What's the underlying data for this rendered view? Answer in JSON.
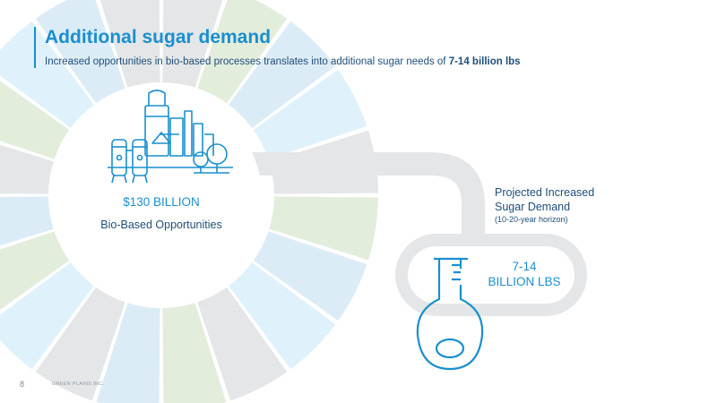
{
  "header": {
    "title": "Additional sugar demand",
    "subtitle_prefix": "Increased opportunities in bio-based processes translates into additional sugar needs of ",
    "subtitle_emphasis": "7-14 billion lbs"
  },
  "bio_based": {
    "value": "$130 BILLION",
    "label": "Bio-Based Opportunities"
  },
  "projection": {
    "line1": "Projected Increased",
    "line2": "Sugar Demand",
    "horizon": "(10-20-year horizon)"
  },
  "flask": {
    "value_line1": "7-14",
    "value_line2": "BILLION LBS"
  },
  "footer": {
    "page_number": "8",
    "company": "GREEN PLAINS INC."
  },
  "icons": [
    "factory-icon",
    "tree-icon",
    "flask-icon"
  ],
  "colors": {
    "accent": "#1a8fcf",
    "navy": "#1f4e79",
    "segment_gray": "#e4e6e8",
    "segment_green": "#e3eddc",
    "segment_blue": "#dcecf7",
    "segment_light_blue": "#dff1fb"
  }
}
